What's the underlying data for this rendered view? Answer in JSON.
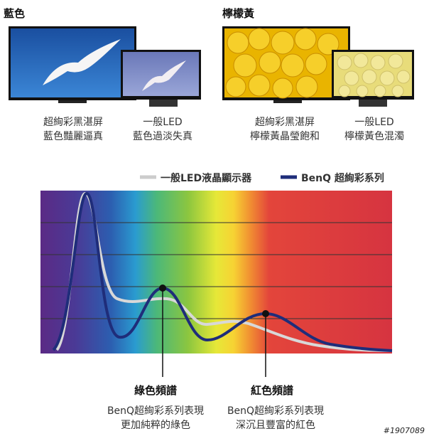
{
  "sections": [
    {
      "title": "藍色",
      "captions": [
        [
          "超絢彩黑湛屏",
          "藍色豔麗逼真"
        ],
        [
          "一般LED",
          "藍色過淡失真"
        ]
      ]
    },
    {
      "title": "檸檬黃",
      "captions": [
        [
          "超絢彩黑湛屏",
          "檸檬黃晶瑩飽和"
        ],
        [
          "一般LED",
          "檸檬黃色混濁"
        ]
      ]
    }
  ],
  "legend": [
    "一般LED液晶顯示器",
    "BenQ 超絢彩系列"
  ],
  "callouts": [
    {
      "title": "綠色頻譜",
      "lines": [
        "BenQ超絢彩系列表現",
        "更加純粹的綠色"
      ]
    },
    {
      "title": "紅色頻譜",
      "lines": [
        "BenQ超絢彩系列表現",
        "深沉且豐富的紅色"
      ]
    }
  ],
  "watermark": "#1907089"
}
